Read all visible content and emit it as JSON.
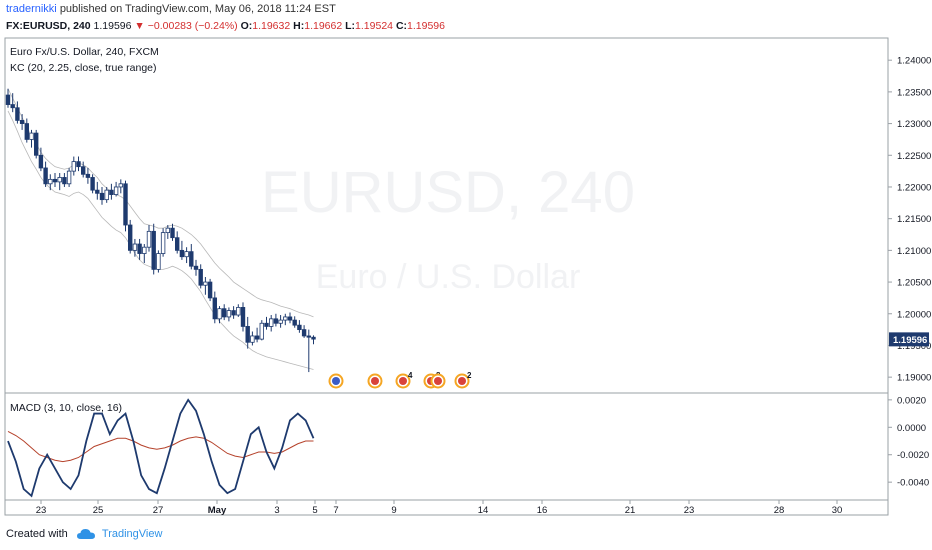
{
  "header": {
    "author": "tradernikki",
    "published_text": "published on TradingView.com, May 06, 2018 11:24 EST",
    "symbol": "FX:EURUSD, 240",
    "last": "1.19596",
    "change": "−0.00283 (−0.24%)",
    "open_label": "O:",
    "open": "1.19632",
    "high_label": "H:",
    "high": "1.19662",
    "low_label": "L:",
    "low": "1.19524",
    "close_label": "C:",
    "close": "1.19596"
  },
  "chart_data": {
    "type": "candlestick",
    "title": "Euro Fx/U.S. Dollar, 240, FXCM",
    "indicator_label": "KC (20, 2.25, close, true range)",
    "watermark_symbol": "EURUSD, 240",
    "watermark_name": "Euro / U.S. Dollar",
    "price_ticks": [
      "1.24000",
      "1.23500",
      "1.23000",
      "1.22500",
      "1.22000",
      "1.21500",
      "1.21000",
      "1.20500",
      "1.20000",
      "1.19500",
      "1.19000"
    ],
    "ylim": [
      1.1875,
      1.2435
    ],
    "last_price_label": "1.19596",
    "x_ticks": [
      "23",
      "25",
      "27",
      "May",
      "3",
      "5",
      "7",
      "9",
      "14",
      "16",
      "21",
      "23",
      "28",
      "30"
    ],
    "candles": [
      [
        1.2345,
        1.2355,
        1.2325,
        1.233
      ],
      [
        1.233,
        1.2348,
        1.2318,
        1.2325
      ],
      [
        1.2325,
        1.2335,
        1.23,
        1.2305
      ],
      [
        1.2305,
        1.2315,
        1.229,
        1.23
      ],
      [
        1.23,
        1.2308,
        1.227,
        1.2275
      ],
      [
        1.2275,
        1.229,
        1.2262,
        1.2285
      ],
      [
        1.2285,
        1.229,
        1.2245,
        1.225
      ],
      [
        1.225,
        1.2262,
        1.2225,
        1.223
      ],
      [
        1.223,
        1.224,
        1.22,
        1.2205
      ],
      [
        1.2205,
        1.222,
        1.2195,
        1.2212
      ],
      [
        1.2212,
        1.2222,
        1.22,
        1.2208
      ],
      [
        1.2208,
        1.2222,
        1.2195,
        1.2215
      ],
      [
        1.2215,
        1.2222,
        1.22,
        1.2205
      ],
      [
        1.2205,
        1.223,
        1.22,
        1.2225
      ],
      [
        1.2225,
        1.2248,
        1.2218,
        1.224
      ],
      [
        1.224,
        1.2248,
        1.2225,
        1.2232
      ],
      [
        1.2232,
        1.224,
        1.2215,
        1.222
      ],
      [
        1.222,
        1.223,
        1.2205,
        1.2215
      ],
      [
        1.2215,
        1.222,
        1.219,
        1.2195
      ],
      [
        1.2195,
        1.2208,
        1.218,
        1.219
      ],
      [
        1.219,
        1.22,
        1.2172,
        1.218
      ],
      [
        1.218,
        1.22,
        1.2175,
        1.2195
      ],
      [
        1.2195,
        1.2205,
        1.218,
        1.2188
      ],
      [
        1.2188,
        1.2208,
        1.2185,
        1.22
      ],
      [
        1.22,
        1.2212,
        1.219,
        1.2205
      ],
      [
        1.2205,
        1.221,
        1.213,
        1.214
      ],
      [
        1.214,
        1.2148,
        1.2095,
        1.21
      ],
      [
        1.21,
        1.2118,
        1.209,
        1.211
      ],
      [
        1.211,
        1.2118,
        1.2085,
        1.2095
      ],
      [
        1.2095,
        1.211,
        1.208,
        1.2105
      ],
      [
        1.2105,
        1.214,
        1.2098,
        1.213
      ],
      [
        1.213,
        1.2142,
        1.2062,
        1.207
      ],
      [
        1.207,
        1.21,
        1.2065,
        1.2095
      ],
      [
        1.2095,
        1.2135,
        1.209,
        1.2128
      ],
      [
        1.2128,
        1.214,
        1.2118,
        1.2135
      ],
      [
        1.2135,
        1.2142,
        1.2115,
        1.212
      ],
      [
        1.212,
        1.213,
        1.2095,
        1.21
      ],
      [
        1.21,
        1.2115,
        1.2085,
        1.209
      ],
      [
        1.209,
        1.2105,
        1.208,
        1.2098
      ],
      [
        1.2098,
        1.211,
        1.207,
        1.2075
      ],
      [
        1.2075,
        1.2085,
        1.206,
        1.207
      ],
      [
        1.207,
        1.2078,
        1.204,
        1.2045
      ],
      [
        1.2045,
        1.2058,
        1.203,
        1.205
      ],
      [
        1.205,
        1.2055,
        1.202,
        1.2025
      ],
      [
        1.2025,
        1.2035,
        1.1985,
        1.1992
      ],
      [
        1.1992,
        1.2012,
        1.1985,
        1.2008
      ],
      [
        1.2008,
        1.2015,
        1.199,
        1.1995
      ],
      [
        1.1995,
        1.201,
        1.1988,
        1.2005
      ],
      [
        1.2005,
        1.2012,
        1.1992,
        1.1998
      ],
      [
        1.1998,
        1.2015,
        1.1995,
        1.201
      ],
      [
        1.201,
        1.2018,
        1.1972,
        1.198
      ],
      [
        1.198,
        1.1995,
        1.1945,
        1.1955
      ],
      [
        1.1955,
        1.1972,
        1.195,
        1.1965
      ],
      [
        1.1965,
        1.1978,
        1.1955,
        1.196
      ],
      [
        1.196,
        1.199,
        1.1958,
        1.1985
      ],
      [
        1.1985,
        1.1995,
        1.1975,
        1.198
      ],
      [
        1.198,
        1.1998,
        1.1972,
        1.1992
      ],
      [
        1.1992,
        1.2,
        1.198,
        1.1985
      ],
      [
        1.1985,
        1.1998,
        1.1978,
        1.199
      ],
      [
        1.199,
        1.2,
        1.1982,
        1.1995
      ],
      [
        1.1995,
        1.2002,
        1.1985,
        1.199
      ],
      [
        1.199,
        1.1996,
        1.1978,
        1.1982
      ],
      [
        1.1982,
        1.199,
        1.197,
        1.1975
      ],
      [
        1.1975,
        1.1982,
        1.1962,
        1.1965
      ],
      [
        1.1965,
        1.1975,
        1.1908,
        1.1963
      ],
      [
        1.1963,
        1.1966,
        1.1952,
        1.196
      ]
    ],
    "kc_upper": [
      1.2355,
      1.234,
      1.2325,
      1.231,
      1.2295,
      1.228,
      1.2268,
      1.2255,
      1.2245,
      1.2238,
      1.2232,
      1.223,
      1.2228,
      1.223,
      1.2235,
      1.2238,
      1.2235,
      1.223,
      1.2222,
      1.2215,
      1.2205,
      1.2198,
      1.2192,
      1.2188,
      1.2185,
      1.218,
      1.217,
      1.216,
      1.215,
      1.2142,
      1.214,
      1.2138,
      1.2135,
      1.2135,
      1.2138,
      1.214,
      1.2138,
      1.2135,
      1.213,
      1.2125,
      1.2118,
      1.211,
      1.21,
      1.209,
      1.208,
      1.2072,
      1.2065,
      1.2058,
      1.205,
      1.2045,
      1.204,
      1.2035,
      1.203,
      1.2025,
      1.2022,
      1.202,
      1.2018,
      1.2015,
      1.2012,
      1.201,
      1.2008,
      1.2005,
      1.2002,
      1.2,
      1.1998,
      1.1995
    ],
    "kc_lower": [
      1.232,
      1.2305,
      1.2288,
      1.227,
      1.2255,
      1.224,
      1.2228,
      1.2215,
      1.2205,
      1.2198,
      1.2192,
      1.219,
      1.2188,
      1.2185,
      1.219,
      1.2192,
      1.2188,
      1.2182,
      1.2172,
      1.2162,
      1.2152,
      1.2145,
      1.2138,
      1.2132,
      1.2128,
      1.212,
      1.2108,
      1.2095,
      1.2085,
      1.2078,
      1.2075,
      1.2072,
      1.207,
      1.207,
      1.2072,
      1.2075,
      1.2072,
      1.2068,
      1.2062,
      1.2055,
      1.2045,
      1.2035,
      1.2022,
      1.201,
      1.1998,
      1.1988,
      1.198,
      1.1972,
      1.1965,
      1.196,
      1.1955,
      1.1948,
      1.1942,
      1.1938,
      1.1935,
      1.1932,
      1.193,
      1.1928,
      1.1926,
      1.1924,
      1.1922,
      1.192,
      1.1918,
      1.1916,
      1.1914,
      1.1912
    ],
    "macd_label": "MACD (3, 10, close, 16)",
    "macd_ticks": [
      "0.0020",
      "0.0000",
      "-0.0020",
      "-0.0040"
    ],
    "macd_ylim": [
      -0.0053,
      0.0025
    ],
    "macd": [
      -0.001,
      -0.0025,
      -0.0045,
      -0.005,
      -0.003,
      -0.002,
      -0.003,
      -0.004,
      -0.0045,
      -0.0035,
      -0.001,
      0.001,
      0.001,
      -0.0005,
      0.0005,
      0.001,
      -0.001,
      -0.0035,
      -0.0045,
      -0.0048,
      -0.003,
      -0.001,
      0.001,
      0.002,
      0.0012,
      -0.0005,
      -0.0025,
      -0.0042,
      -0.0048,
      -0.0045,
      -0.0025,
      -0.0005,
      0.0,
      -0.0018,
      -0.003,
      -0.0015,
      0.0005,
      0.001,
      0.0005,
      -0.0008
    ],
    "macd_signal": [
      -0.0003,
      -0.0006,
      -0.001,
      -0.0015,
      -0.002,
      -0.0022,
      -0.0024,
      -0.0025,
      -0.0024,
      -0.0022,
      -0.0018,
      -0.0014,
      -0.0012,
      -0.001,
      -0.0008,
      -0.0008,
      -0.001,
      -0.0013,
      -0.0015,
      -0.0016,
      -0.0015,
      -0.0013,
      -0.001,
      -0.0008,
      -0.0007,
      -0.0008,
      -0.0011,
      -0.0015,
      -0.0019,
      -0.0021,
      -0.0022,
      -0.002,
      -0.0018,
      -0.0018,
      -0.0019,
      -0.0018,
      -0.0015,
      -0.0012,
      -0.001,
      -0.001
    ],
    "events": [
      {
        "label": "",
        "color": "#3b5cc7"
      },
      {
        "label": "",
        "color": "#d9433b"
      },
      {
        "label": "4",
        "color": "#d9433b"
      },
      {
        "label": "8",
        "color": "#d9433b"
      },
      {
        "label": "",
        "color": "#d9433b"
      },
      {
        "label": "2",
        "color": "#d9433b"
      }
    ]
  },
  "footer": {
    "created_with": "Created with",
    "brand": "TradingView"
  },
  "colors": {
    "candle": "#1e3a6e",
    "kc": "#b8b8b8",
    "macd": "#1e3a6e",
    "signal": "#b5422b",
    "accent": "#2f92e6"
  }
}
